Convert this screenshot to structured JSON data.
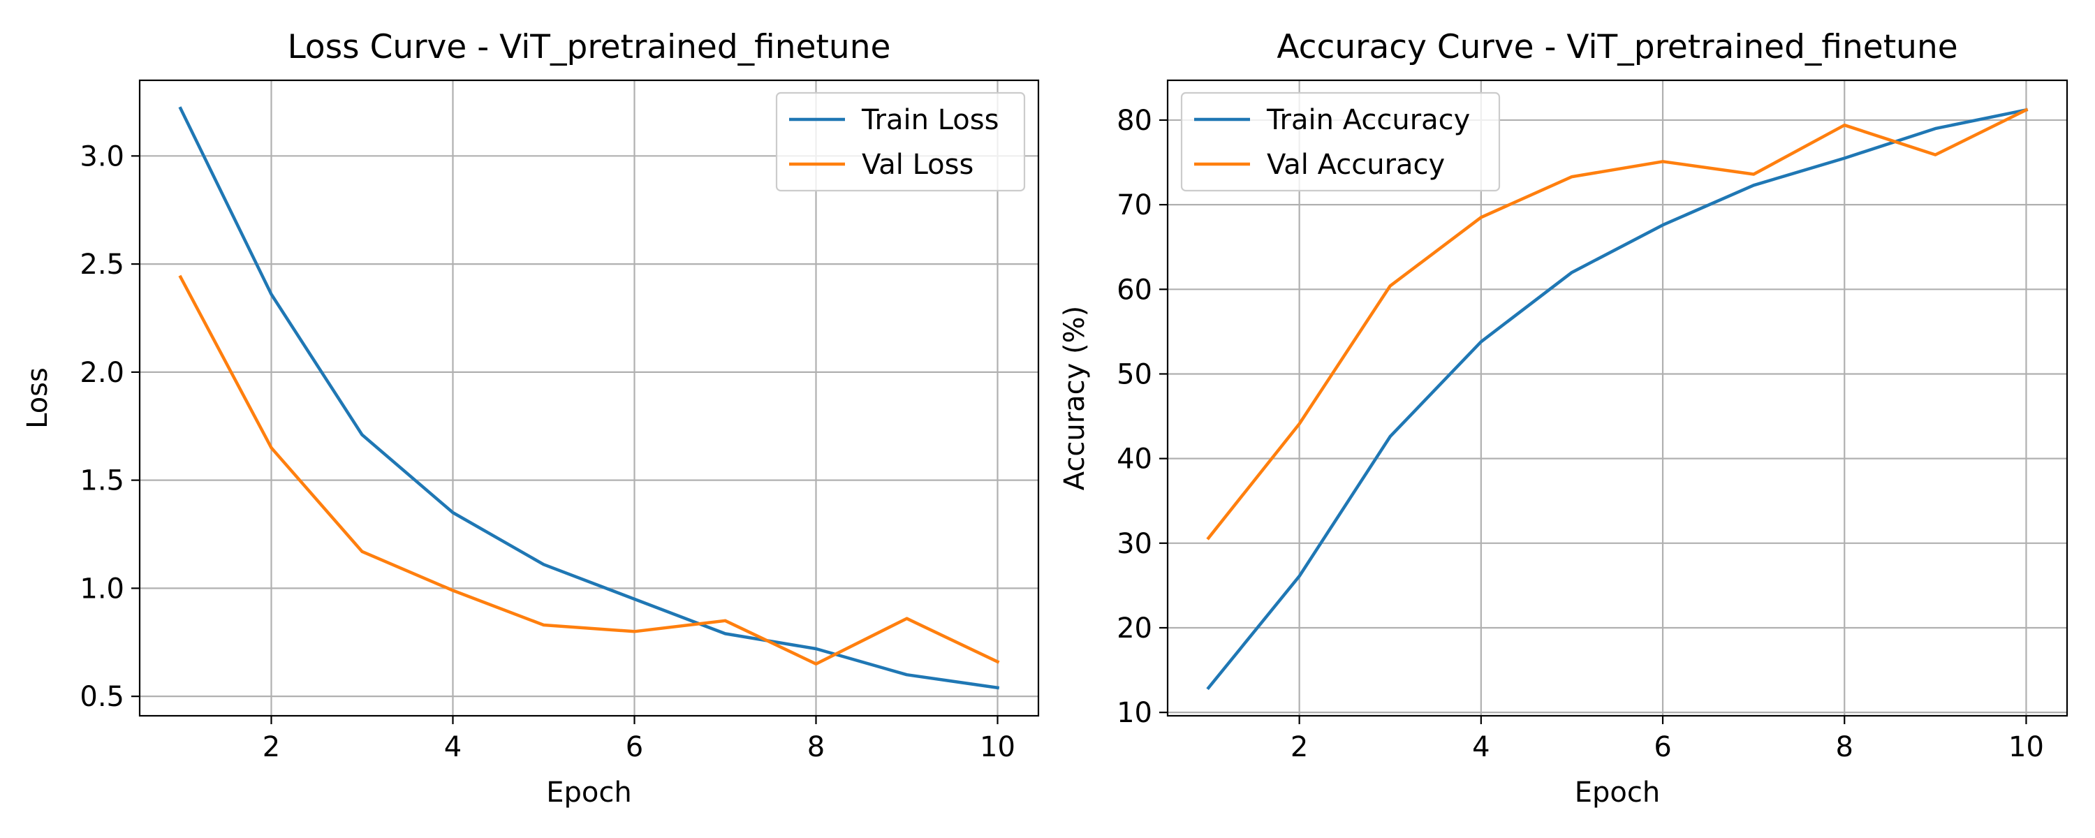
{
  "chart_data": [
    {
      "type": "line",
      "title": "Loss Curve - ViT_pretrained_finetune",
      "xlabel": "Epoch",
      "ylabel": "Loss",
      "x": [
        1,
        2,
        3,
        4,
        5,
        6,
        7,
        8,
        9,
        10
      ],
      "xlim": [
        0.55,
        10.45
      ],
      "ylim": [
        0.41,
        3.35
      ],
      "xticks": [
        2,
        4,
        6,
        8,
        10
      ],
      "xtick_labels": [
        "2",
        "4",
        "6",
        "8",
        "10"
      ],
      "yticks": [
        0.5,
        1.0,
        1.5,
        2.0,
        2.5,
        3.0
      ],
      "ytick_labels": [
        "0.5",
        "1.0",
        "1.5",
        "2.0",
        "2.5",
        "3.0"
      ],
      "grid": true,
      "legend": "top-right",
      "series": [
        {
          "name": "Train Loss",
          "color": "#1f77b4",
          "values": [
            3.22,
            2.36,
            1.71,
            1.35,
            1.11,
            0.95,
            0.79,
            0.72,
            0.6,
            0.54
          ]
        },
        {
          "name": "Val Loss",
          "color": "#ff7f0e",
          "values": [
            2.44,
            1.65,
            1.17,
            0.99,
            0.83,
            0.8,
            0.85,
            0.65,
            0.86,
            0.66
          ]
        }
      ]
    },
    {
      "type": "line",
      "title": "Accuracy Curve - ViT_pretrained_finetune",
      "xlabel": "Epoch",
      "ylabel": "Accuracy (%)",
      "x": [
        1,
        2,
        3,
        4,
        5,
        6,
        7,
        8,
        9,
        10
      ],
      "xlim": [
        0.55,
        10.45
      ],
      "ylim": [
        9.6,
        84.7
      ],
      "xticks": [
        2,
        4,
        6,
        8,
        10
      ],
      "xtick_labels": [
        "2",
        "4",
        "6",
        "8",
        "10"
      ],
      "yticks": [
        10,
        20,
        30,
        40,
        50,
        60,
        70,
        80
      ],
      "ytick_labels": [
        "10",
        "20",
        "30",
        "40",
        "50",
        "60",
        "70",
        "80"
      ],
      "grid": true,
      "legend": "top-left",
      "series": [
        {
          "name": "Train Accuracy",
          "color": "#1f77b4",
          "values": [
            12.9,
            26.1,
            42.6,
            53.8,
            62.0,
            67.6,
            72.3,
            75.5,
            79.0,
            81.2
          ]
        },
        {
          "name": "Val Accuracy",
          "color": "#ff7f0e",
          "values": [
            30.6,
            44.1,
            60.4,
            68.5,
            73.3,
            75.1,
            73.6,
            79.4,
            75.9,
            81.2
          ]
        }
      ]
    }
  ]
}
